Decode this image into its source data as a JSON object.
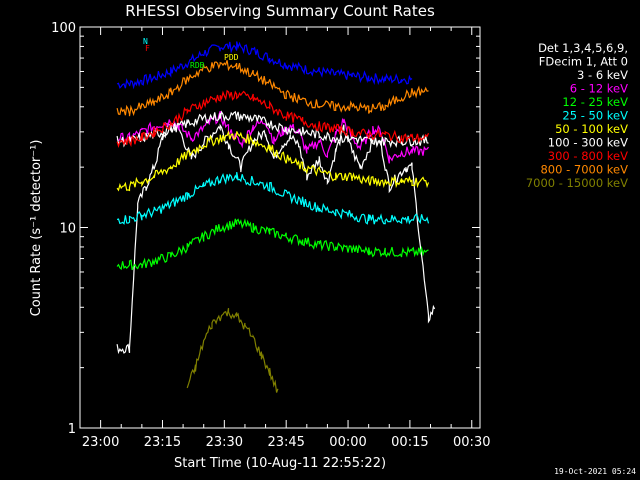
{
  "chart_data": {
    "type": "line",
    "title": "RHESSI Observing Summary Count Rates",
    "xlabel": "Start Time (10-Aug-11 22:55:22)",
    "ylabel": "Count Rate (s⁻¹ detector⁻¹)",
    "yscale": "log",
    "ylim": [
      1,
      100
    ],
    "xlim_minutes": [
      0,
      97
    ],
    "x_tick_labels": [
      "23:00",
      "23:15",
      "23:30",
      "23:45",
      "00:00",
      "00:15",
      "00:30"
    ],
    "x_tick_minutes": [
      5,
      20,
      35,
      50,
      65,
      80,
      95
    ],
    "y_tick_labels": [
      "1",
      "10",
      "100"
    ],
    "y_tick_values": [
      1,
      10,
      100
    ],
    "legend_header": [
      "Det 1,3,4,5,6,9,",
      "FDecim 1, Att 0"
    ],
    "footer": "19-Oct-2021 05:24",
    "flag_labels": {
      "N": "N",
      "F": "F",
      "RDB": "RDB",
      "PDD": "PDD"
    },
    "series": [
      {
        "name": "3 - 6 keV",
        "color": "#ffffff",
        "x": [
          9,
          12,
          14,
          16,
          18,
          20,
          22,
          24,
          27,
          29,
          31,
          34,
          36,
          39,
          42,
          45,
          47,
          49,
          51,
          53,
          55,
          58,
          60,
          62,
          64,
          66,
          68,
          71,
          73,
          75,
          77,
          79,
          80.5,
          84.5,
          86
        ],
        "y": [
          2.5,
          2.5,
          13,
          16,
          20,
          28,
          33,
          31,
          22,
          25,
          28,
          32,
          26,
          20,
          27,
          30,
          22,
          26,
          28,
          26,
          18,
          22,
          17,
          24,
          31,
          24,
          20,
          27,
          26,
          16,
          18,
          20,
          20,
          3.5,
          4
        ]
      },
      {
        "name": "6 - 12 keV",
        "color": "#ff00ff",
        "x": [
          9,
          12,
          15,
          18,
          20,
          22,
          24,
          27,
          29,
          31,
          34,
          36,
          39,
          42,
          45,
          47,
          49,
          51,
          53,
          55,
          58,
          60,
          62,
          64,
          66,
          68,
          71,
          73,
          75,
          77,
          79,
          80.5,
          84.5
        ],
        "y": [
          28,
          28,
          30,
          32,
          33,
          34,
          32,
          28,
          30,
          33,
          36,
          31,
          26,
          32,
          34,
          27,
          30,
          32,
          30,
          24,
          27,
          23,
          29,
          34,
          28,
          25,
          31,
          30,
          22,
          23,
          24,
          24,
          24
        ]
      },
      {
        "name": "12 - 25 keV",
        "color": "#00ff00",
        "x": [
          9,
          12,
          15,
          18,
          22,
          26,
          30,
          34,
          38,
          42,
          46,
          50,
          54,
          58,
          62,
          66,
          70,
          74,
          78,
          80.5,
          84.5
        ],
        "y": [
          6.5,
          6.5,
          6.5,
          6.8,
          7.2,
          8.0,
          9.0,
          10.0,
          10.5,
          10.0,
          9.5,
          9.0,
          8.6,
          8.2,
          8.0,
          7.8,
          7.6,
          7.6,
          7.5,
          7.5,
          7.5
        ]
      },
      {
        "name": "25 - 50 keV",
        "color": "#00ffff",
        "x": [
          9,
          12,
          15,
          18,
          22,
          26,
          30,
          34,
          38,
          42,
          46,
          50,
          54,
          58,
          62,
          66,
          70,
          74,
          78,
          80.5,
          84.5
        ],
        "y": [
          11,
          11,
          11.5,
          12,
          13,
          14.5,
          16,
          17.5,
          18,
          17,
          16,
          14.5,
          13.5,
          12.5,
          12,
          11.5,
          11,
          11,
          11,
          11,
          11
        ]
      },
      {
        "name": "50 - 100 keV",
        "color": "#ffff00",
        "x": [
          9,
          12,
          15,
          18,
          22,
          26,
          30,
          34,
          38,
          42,
          46,
          50,
          54,
          58,
          62,
          66,
          70,
          74,
          78,
          80.5,
          84.5
        ],
        "y": [
          16,
          16,
          17,
          18,
          20,
          23,
          26,
          28,
          29,
          27,
          25,
          22,
          20,
          19,
          18,
          18,
          17,
          17,
          17,
          17,
          17
        ]
      },
      {
        "name": "100 - 300 keV",
        "color": "#ffffff",
        "x": [
          9,
          12,
          15,
          18,
          22,
          26,
          30,
          34,
          38,
          42,
          46,
          50,
          54,
          58,
          62,
          66,
          70,
          74,
          78,
          80.5,
          84.5
        ],
        "y": [
          27,
          27,
          28,
          29,
          31,
          33,
          35,
          36,
          36,
          35,
          33,
          31,
          30,
          29,
          28,
          28,
          27,
          27,
          27,
          27,
          27
        ]
      },
      {
        "name": "300 - 800 keV",
        "color": "#ff0000",
        "x": [
          9,
          12,
          15,
          18,
          22,
          26,
          30,
          34,
          38,
          42,
          46,
          50,
          54,
          58,
          62,
          66,
          70,
          74,
          78,
          80.5,
          84.5
        ],
        "y": [
          27,
          27,
          28,
          30,
          33,
          38,
          42,
          45,
          46,
          44,
          40,
          36,
          34,
          32,
          31,
          30,
          29,
          29,
          28,
          28,
          28
        ]
      },
      {
        "name": "800 - 7000 keV",
        "color": "#ff8800",
        "x": [
          9,
          12,
          15,
          18,
          22,
          26,
          30,
          34,
          38,
          42,
          46,
          50,
          54,
          58,
          62,
          66,
          70,
          74,
          78,
          80.5,
          84.5
        ],
        "y": [
          38,
          38,
          40,
          42,
          47,
          55,
          62,
          65,
          64,
          58,
          52,
          46,
          43,
          41,
          40,
          40,
          39,
          40,
          45,
          47,
          48
        ]
      },
      {
        "name": "7000 - 15000 keV",
        "color": "#808000",
        "x": [
          26,
          28,
          30,
          32,
          34,
          36,
          38,
          40,
          42,
          44,
          46,
          48
        ],
        "y": [
          1.6,
          2.0,
          2.7,
          3.3,
          3.6,
          3.8,
          3.6,
          3.2,
          2.8,
          2.3,
          1.9,
          1.5
        ]
      }
    ],
    "extra_traces": [
      {
        "name": "blue",
        "color": "#0000ff",
        "x": [
          9,
          12,
          15,
          18,
          22,
          26,
          30,
          34,
          38,
          42,
          46,
          50,
          54,
          58,
          62,
          66,
          70,
          74,
          78,
          80.5
        ],
        "y": [
          52,
          52,
          54,
          56,
          60,
          66,
          74,
          80,
          80,
          76,
          70,
          65,
          62,
          60,
          58,
          57,
          56,
          55,
          55,
          55
        ]
      }
    ]
  }
}
